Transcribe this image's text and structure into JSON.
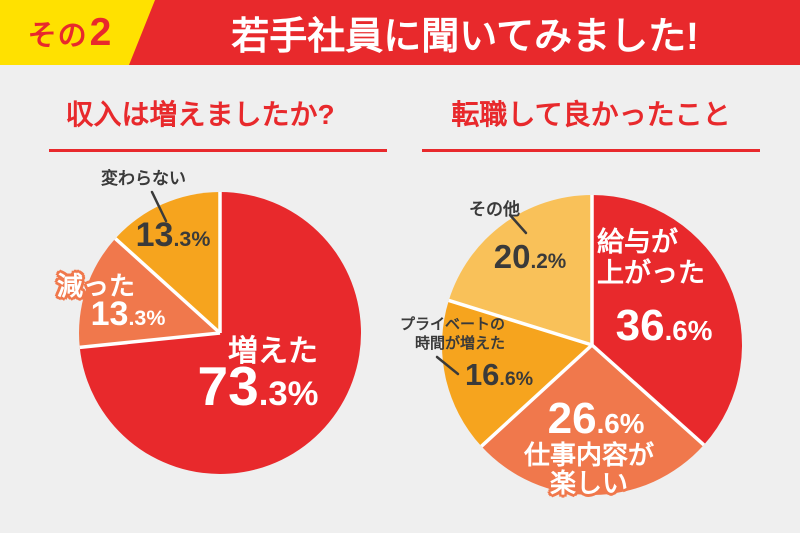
{
  "header": {
    "badge": {
      "prefix": "その",
      "number": "2"
    },
    "title": "若手社員に聞いてみました!"
  },
  "palette": {
    "red": "#e8292c",
    "orange": "#f0784c",
    "amber": "#f6a41e",
    "light_yellow": "#f9c159",
    "badge_yellow": "#ffe100",
    "text_dark": "#3a3a3a",
    "background": "#efefef"
  },
  "chart_data": [
    {
      "type": "pie",
      "title": "収入は増えましたか?",
      "start_angle_deg": 0,
      "direction": "clockwise",
      "slices": [
        {
          "label": "増えた",
          "pct": "73.3%",
          "value": 73.3,
          "color": "red"
        },
        {
          "label": "減った",
          "pct": "13.3%",
          "value": 13.3,
          "color": "orange"
        },
        {
          "label": "変わらない",
          "pct": "13.3%",
          "value": 13.3,
          "color": "amber"
        }
      ]
    },
    {
      "type": "pie",
      "title": "転職して良かったこと",
      "start_angle_deg": 0,
      "direction": "clockwise",
      "slices": [
        {
          "label": "給与が上がった",
          "label_lines": [
            "給与が",
            "上がった"
          ],
          "pct": "36.6%",
          "value": 36.6,
          "color": "red"
        },
        {
          "label": "仕事内容が楽しい",
          "label_lines": [
            "仕事内容が",
            "楽しい"
          ],
          "pct": "26.6%",
          "value": 26.6,
          "color": "orange"
        },
        {
          "label": "プライベートの時間が増えた",
          "label_lines": [
            "プライベートの",
            "時間が増えた"
          ],
          "pct": "16.6%",
          "value": 16.6,
          "color": "amber"
        },
        {
          "label": "その他",
          "pct": "20.2%",
          "value": 20.2,
          "color": "light_yellow"
        }
      ]
    }
  ]
}
